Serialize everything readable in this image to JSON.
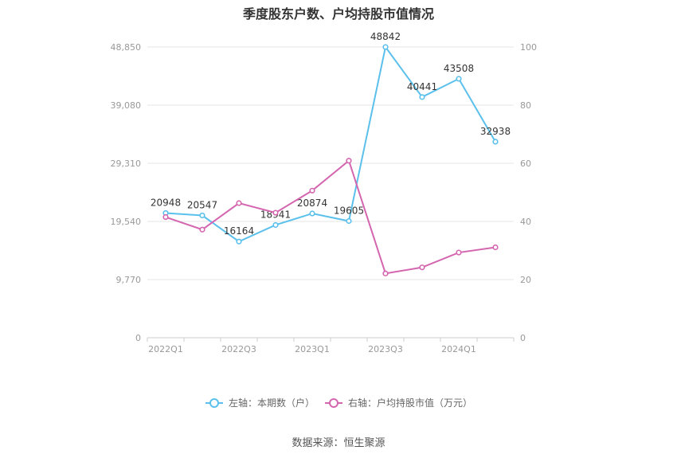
{
  "title": "季度股东户数、户均持股市值情况",
  "source": "数据来源：恒生聚源",
  "chart_data": {
    "type": "line",
    "title": "季度股东户数、户均持股市值情况",
    "x": [
      "2022Q1",
      "2022Q2",
      "2022Q3",
      "2022Q4",
      "2023Q1",
      "2023Q2",
      "2023Q3",
      "2023Q4",
      "2024Q1",
      "2024Q2"
    ],
    "x_tick_labels": [
      "2022Q1",
      "2022Q3",
      "2023Q1",
      "2023Q3",
      "2024Q1"
    ],
    "left_axis": {
      "ylim": [
        0,
        48850
      ],
      "ticks": [
        "0",
        "9,770",
        "19,540",
        "29,310",
        "39,080",
        "48,850"
      ]
    },
    "right_axis": {
      "ylim": [
        0,
        100
      ],
      "ticks": [
        "0",
        "20",
        "40",
        "60",
        "80",
        "100"
      ]
    },
    "grid": true,
    "legend_position": "bottom",
    "series": [
      {
        "name": "左轴：本期数（户）",
        "axis": "left",
        "color": "#5bc0eb",
        "values": [
          20948,
          20547,
          16164,
          18941,
          20874,
          19605,
          48842,
          40441,
          43508,
          32938
        ],
        "labels": [
          "20948",
          "20547",
          "16164",
          "18941",
          "20874",
          "19605",
          "48842",
          "40441",
          "43508",
          "32938"
        ]
      },
      {
        "name": "右轴：户均持股市值（万元）",
        "axis": "right",
        "color": "#d466b0",
        "values": [
          41.5,
          37.2,
          46.3,
          43.0,
          50.6,
          60.9,
          22.1,
          24.2,
          29.3,
          31.1
        ]
      }
    ]
  }
}
